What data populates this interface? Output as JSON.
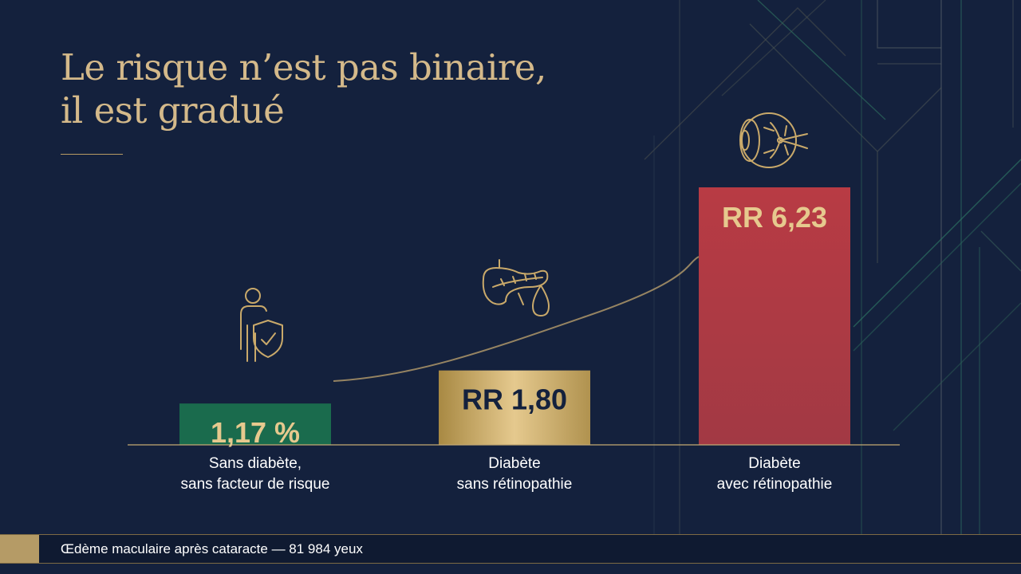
{
  "slide": {
    "title_lines": [
      "Le risque n’est pas binaire,",
      "il est gradué"
    ],
    "footer": "Œdème maculaire après cataracte — 81 984 yeux"
  },
  "colors": {
    "background": "#14213d",
    "title": "#d4b98a",
    "accent_gold": "#b59b66",
    "bar_green": "#1a6b4d",
    "bar_gold": "#c9a85a",
    "bar_red": "#b13b45",
    "label_gold": "#e6c98e",
    "label_dark": "#14213d"
  },
  "chart_data": {
    "type": "bar",
    "title": "",
    "xlabel": "",
    "ylabel": "",
    "categories": [
      [
        "Sans diabète,",
        "sans facteur de risque"
      ],
      [
        "Diabète",
        "sans rétinopathie"
      ],
      [
        "Diabète",
        "avec rétinopathie"
      ]
    ],
    "values": [
      1.0,
      1.8,
      6.23
    ],
    "data_labels": [
      "1,17 %",
      "RR 1,80",
      "RR 6,23"
    ],
    "icons": [
      "person-shield-icon",
      "pancreas-drop-icon",
      "eye-icon"
    ],
    "trend_line": true,
    "ylim": [
      0,
      6.23
    ],
    "grid": false,
    "legend": "none"
  }
}
